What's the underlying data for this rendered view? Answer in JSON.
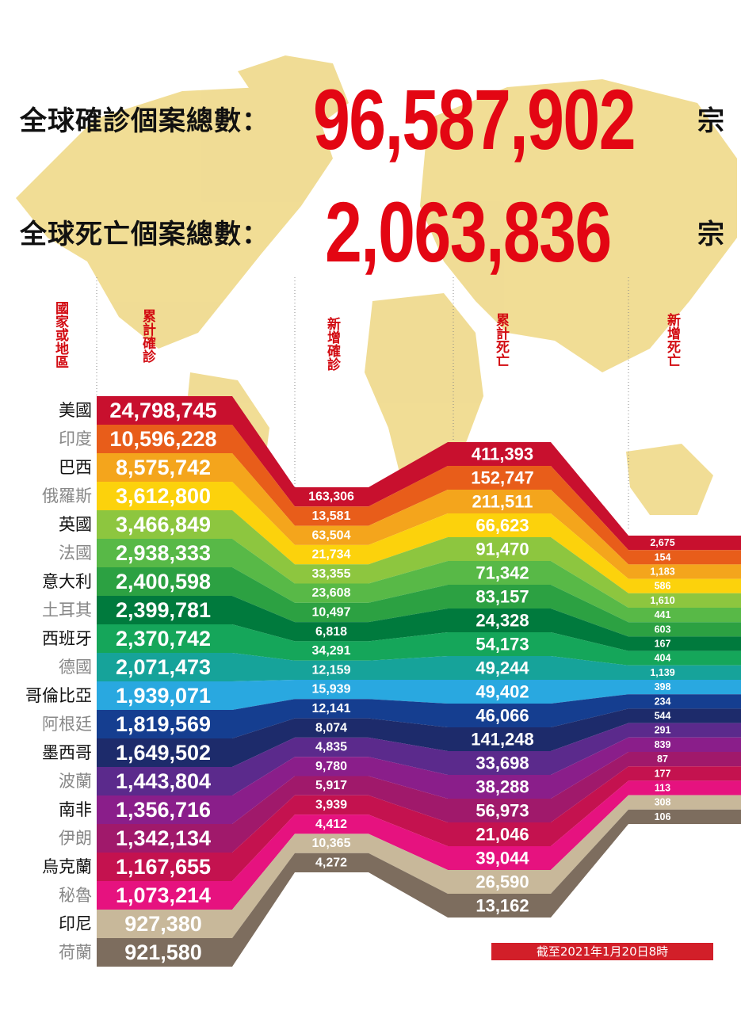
{
  "header": {
    "confirmed_label": "全球確診個案總數：",
    "confirmed_total": "96,587,902",
    "deaths_label": "全球死亡個案總數：",
    "deaths_total": "2,063,836",
    "unit": "宗"
  },
  "columns": {
    "country": "國家或地區",
    "cum_cases": "累計確診",
    "new_cases": "新增確診",
    "cum_deaths": "累計死亡",
    "new_deaths": "新增死亡"
  },
  "footnote": "截至2021年1月20日8時",
  "chart_data": {
    "type": "table",
    "colors": [
      "#c8102e",
      "#e85d1a",
      "#f4a51c",
      "#fcd20c",
      "#8dc63f",
      "#58b947",
      "#2ca142",
      "#007a3d",
      "#15a65a",
      "#16a39a",
      "#29a8e0",
      "#153e90",
      "#1d2b6b",
      "#5b2a8c",
      "#8a1e8a",
      "#a0196b",
      "#c4124f",
      "#e6127f",
      "#c8b89a",
      "#7d6d5e"
    ],
    "rows": [
      {
        "country": "美國",
        "cum_cases": "24,798,745",
        "new_cases": "163,306",
        "cum_deaths": "411,393",
        "new_deaths": "2,675"
      },
      {
        "country": "印度",
        "cum_cases": "10,596,228",
        "new_cases": "13,581",
        "cum_deaths": "152,747",
        "new_deaths": "154"
      },
      {
        "country": "巴西",
        "cum_cases": "8,575,742",
        "new_cases": "63,504",
        "cum_deaths": "211,511",
        "new_deaths": "1,183"
      },
      {
        "country": "俄羅斯",
        "cum_cases": "3,612,800",
        "new_cases": "21,734",
        "cum_deaths": "66,623",
        "new_deaths": "586"
      },
      {
        "country": "英國",
        "cum_cases": "3,466,849",
        "new_cases": "33,355",
        "cum_deaths": "91,470",
        "new_deaths": "1,610"
      },
      {
        "country": "法國",
        "cum_cases": "2,938,333",
        "new_cases": "23,608",
        "cum_deaths": "71,342",
        "new_deaths": "441"
      },
      {
        "country": "意大利",
        "cum_cases": "2,400,598",
        "new_cases": "10,497",
        "cum_deaths": "83,157",
        "new_deaths": "603"
      },
      {
        "country": "土耳其",
        "cum_cases": "2,399,781",
        "new_cases": "6,818",
        "cum_deaths": "24,328",
        "new_deaths": "167"
      },
      {
        "country": "西班牙",
        "cum_cases": "2,370,742",
        "new_cases": "34,291",
        "cum_deaths": "54,173",
        "new_deaths": "404"
      },
      {
        "country": "德國",
        "cum_cases": "2,071,473",
        "new_cases": "12,159",
        "cum_deaths": "49,244",
        "new_deaths": "1,139"
      },
      {
        "country": "哥倫比亞",
        "cum_cases": "1,939,071",
        "new_cases": "15,939",
        "cum_deaths": "49,402",
        "new_deaths": "398"
      },
      {
        "country": "阿根廷",
        "cum_cases": "1,819,569",
        "new_cases": "12,141",
        "cum_deaths": "46,066",
        "new_deaths": "234"
      },
      {
        "country": "墨西哥",
        "cum_cases": "1,649,502",
        "new_cases": "8,074",
        "cum_deaths": "141,248",
        "new_deaths": "544"
      },
      {
        "country": "波蘭",
        "cum_cases": "1,443,804",
        "new_cases": "4,835",
        "cum_deaths": "33,698",
        "new_deaths": "291"
      },
      {
        "country": "南非",
        "cum_cases": "1,356,716",
        "new_cases": "9,780",
        "cum_deaths": "38,288",
        "new_deaths": "839"
      },
      {
        "country": "伊朗",
        "cum_cases": "1,342,134",
        "new_cases": "5,917",
        "cum_deaths": "56,973",
        "new_deaths": "87"
      },
      {
        "country": "烏克蘭",
        "cum_cases": "1,167,655",
        "new_cases": "3,939",
        "cum_deaths": "21,046",
        "new_deaths": "177"
      },
      {
        "country": "秘魯",
        "cum_cases": "1,073,214",
        "new_cases": "4,412",
        "cum_deaths": "39,044",
        "new_deaths": "113"
      },
      {
        "country": "印尼",
        "cum_cases": "927,380",
        "new_cases": "10,365",
        "cum_deaths": "26,590",
        "new_deaths": "308"
      },
      {
        "country": "荷蘭",
        "cum_cases": "921,580",
        "new_cases": "4,272",
        "cum_deaths": "13,162",
        "new_deaths": "106"
      }
    ]
  }
}
